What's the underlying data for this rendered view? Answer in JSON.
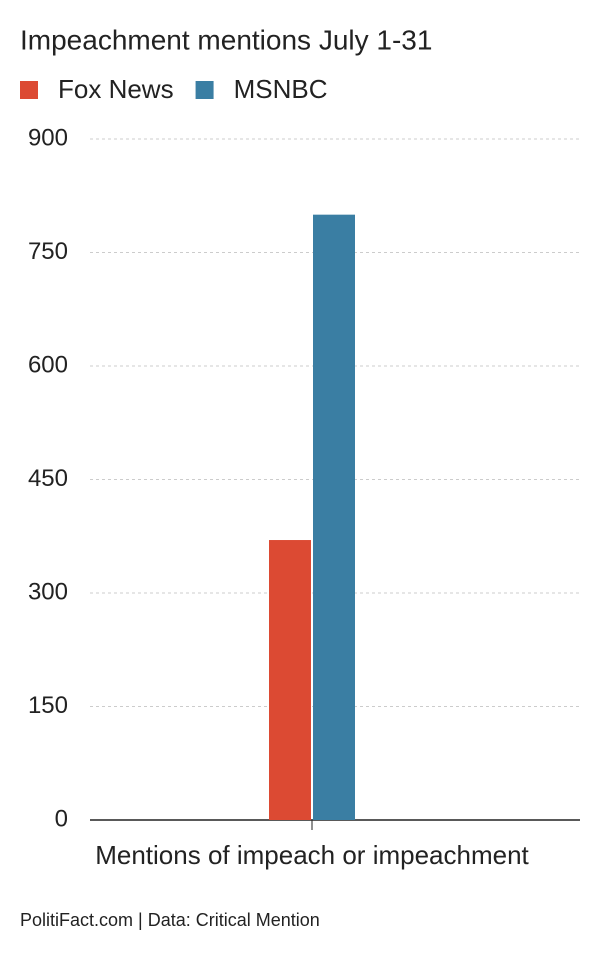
{
  "chart_data": {
    "type": "bar",
    "title": "Impeachment mentions July 1-31",
    "categories": [
      "Mentions of impeach or impeachment"
    ],
    "series": [
      {
        "name": "Fox News",
        "color": "#dc4a33",
        "values": [
          370
        ]
      },
      {
        "name": "MSNBC",
        "color": "#3a7ea3",
        "values": [
          800
        ]
      }
    ],
    "ylim": [
      0,
      900
    ],
    "yticks": [
      0,
      150,
      300,
      450,
      600,
      750,
      900
    ],
    "grid": true,
    "source": "PolitiFact.com | Data: Critical Mention"
  }
}
